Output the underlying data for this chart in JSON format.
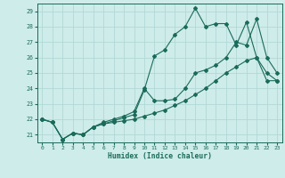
{
  "xlabel": "Humidex (Indice chaleur)",
  "background_color": "#ceecea",
  "grid_color": "#b2d8d5",
  "line_color": "#1a6b5a",
  "xlim": [
    -0.5,
    23.5
  ],
  "ylim": [
    20.5,
    29.5
  ],
  "xticks": [
    0,
    1,
    2,
    3,
    4,
    5,
    6,
    7,
    8,
    9,
    10,
    11,
    12,
    13,
    14,
    15,
    16,
    17,
    18,
    19,
    20,
    21,
    22,
    23
  ],
  "yticks": [
    21,
    22,
    23,
    24,
    25,
    26,
    27,
    28,
    29
  ],
  "series1_x": [
    0,
    1,
    2,
    3,
    4,
    5,
    6,
    7,
    8,
    9,
    10,
    11,
    12,
    13,
    14,
    15,
    16,
    17,
    18,
    19,
    20,
    21,
    22,
    23
  ],
  "series1_y": [
    22.0,
    21.8,
    20.7,
    21.1,
    21.0,
    21.5,
    21.7,
    21.9,
    22.1,
    22.3,
    23.9,
    26.1,
    26.5,
    27.5,
    28.0,
    29.2,
    28.0,
    28.2,
    28.2,
    26.8,
    28.3,
    26.0,
    25.0,
    24.5
  ],
  "series2_x": [
    0,
    1,
    2,
    3,
    4,
    5,
    6,
    7,
    8,
    9,
    10,
    11,
    12,
    13,
    14,
    15,
    16,
    17,
    18,
    19,
    20,
    21,
    22,
    23
  ],
  "series2_y": [
    22.0,
    21.8,
    20.7,
    21.1,
    21.0,
    21.5,
    21.8,
    22.0,
    22.2,
    22.5,
    24.0,
    23.2,
    23.2,
    23.3,
    24.0,
    25.0,
    25.2,
    25.5,
    26.0,
    27.0,
    26.8,
    28.5,
    26.0,
    25.0
  ],
  "series3_x": [
    0,
    1,
    2,
    3,
    4,
    5,
    6,
    7,
    8,
    9,
    10,
    11,
    12,
    13,
    14,
    15,
    16,
    17,
    18,
    19,
    20,
    21,
    22,
    23
  ],
  "series3_y": [
    22.0,
    21.8,
    20.7,
    21.1,
    21.0,
    21.5,
    21.7,
    21.8,
    21.9,
    22.0,
    22.2,
    22.4,
    22.6,
    22.9,
    23.2,
    23.6,
    24.0,
    24.5,
    25.0,
    25.4,
    25.8,
    26.0,
    24.5,
    24.5
  ]
}
